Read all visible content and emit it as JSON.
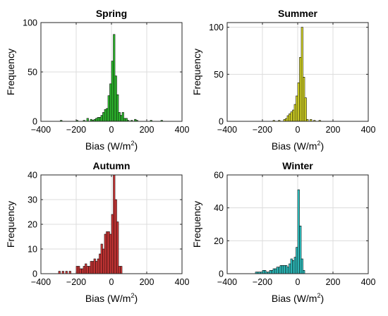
{
  "chart_data": [
    {
      "type": "bar",
      "title": "Spring",
      "xlabel": "Bias (W/m",
      "xlabel_sup": "2",
      "xlabel_close": ")",
      "ylabel": "Frequency",
      "xlim": [
        -400,
        400
      ],
      "ylim": [
        0,
        100
      ],
      "xticks": [
        "-400",
        "-200",
        "0",
        "200",
        "400"
      ],
      "yticks": [
        "0",
        "50",
        "100"
      ],
      "bin_width": 10,
      "bin_centers": [
        -285,
        -195,
        -155,
        -135,
        -115,
        -105,
        -95,
        -85,
        -75,
        -65,
        -55,
        -45,
        -35,
        -25,
        -15,
        -5,
        5,
        15,
        25,
        35,
        45,
        55,
        65,
        75,
        85,
        95,
        115,
        135,
        145,
        225,
        285
      ],
      "counts": [
        1,
        1,
        1,
        3,
        2,
        1,
        2,
        3,
        4,
        4,
        6,
        9,
        12,
        13,
        26,
        38,
        61,
        88,
        46,
        27,
        9,
        6,
        9,
        3,
        3,
        1,
        1,
        2,
        1,
        1,
        1
      ],
      "color": "#33cc33",
      "grid": true
    },
    {
      "type": "bar",
      "title": "Summer",
      "xlabel": "Bias (W/m",
      "xlabel_sup": "2",
      "xlabel_close": ")",
      "ylabel": "Frequency",
      "xlim": [
        -400,
        400
      ],
      "ylim": [
        0,
        105
      ],
      "xticks": [
        "-400",
        "-200",
        "0",
        "200",
        "400"
      ],
      "yticks": [
        "0",
        "50",
        "100"
      ],
      "bin_width": 10,
      "bin_centers": [
        -135,
        -105,
        -75,
        -65,
        -55,
        -45,
        -35,
        -25,
        -15,
        -5,
        5,
        15,
        25,
        35,
        45,
        55,
        75,
        95,
        125
      ],
      "counts": [
        1,
        1,
        2,
        3,
        6,
        8,
        10,
        12,
        18,
        27,
        41,
        68,
        100,
        47,
        25,
        2,
        2,
        1,
        1
      ],
      "color": "#e8e82a",
      "grid": true
    },
    {
      "type": "bar",
      "title": "Autumn",
      "xlabel": "Bias (W/m",
      "xlabel_sup": "2",
      "xlabel_close": ")",
      "ylabel": "Frequency",
      "xlim": [
        -400,
        400
      ],
      "ylim": [
        0,
        40
      ],
      "xticks": [
        "-400",
        "-200",
        "0",
        "200",
        "400"
      ],
      "yticks": [
        "0",
        "10",
        "20",
        "30",
        "40"
      ],
      "bin_width": 10,
      "bin_centers": [
        -295,
        -275,
        -255,
        -235,
        -195,
        -185,
        -175,
        -165,
        -155,
        -145,
        -135,
        -125,
        -115,
        -105,
        -95,
        -85,
        -75,
        -65,
        -55,
        -45,
        -35,
        -25,
        -15,
        -5,
        5,
        15,
        25,
        35,
        45,
        55
      ],
      "counts": [
        1,
        1,
        1,
        1,
        3,
        3,
        2,
        2,
        3,
        4,
        3,
        3,
        5,
        5,
        6,
        5,
        6,
        8,
        12,
        10,
        16,
        17,
        17,
        16,
        24,
        40,
        30,
        21,
        3,
        3
      ],
      "color": "#e03c3c",
      "grid": true
    },
    {
      "type": "bar",
      "title": "Winter",
      "xlabel": "Bias (W/m",
      "xlabel_sup": "2",
      "xlabel_close": ")",
      "ylabel": "Frequency",
      "xlim": [
        -400,
        400
      ],
      "ylim": [
        0,
        60
      ],
      "xticks": [
        "-400",
        "-200",
        "0",
        "200",
        "400"
      ],
      "yticks": [
        "0",
        "20",
        "40",
        "60"
      ],
      "bin_width": 10,
      "bin_centers": [
        -235,
        -225,
        -215,
        -205,
        -195,
        -185,
        -175,
        -165,
        -155,
        -145,
        -135,
        -125,
        -115,
        -105,
        -95,
        -85,
        -75,
        -65,
        -55,
        -45,
        -35,
        -25,
        -15,
        -5,
        5,
        15,
        25,
        35
      ],
      "counts": [
        1,
        1,
        1,
        1,
        2,
        2,
        1,
        1,
        2,
        2,
        3,
        3,
        4,
        4,
        5,
        5,
        5,
        5,
        4,
        6,
        9,
        8,
        10,
        16,
        51,
        29,
        9,
        2
      ],
      "color": "#33d0d0",
      "grid": true
    }
  ]
}
